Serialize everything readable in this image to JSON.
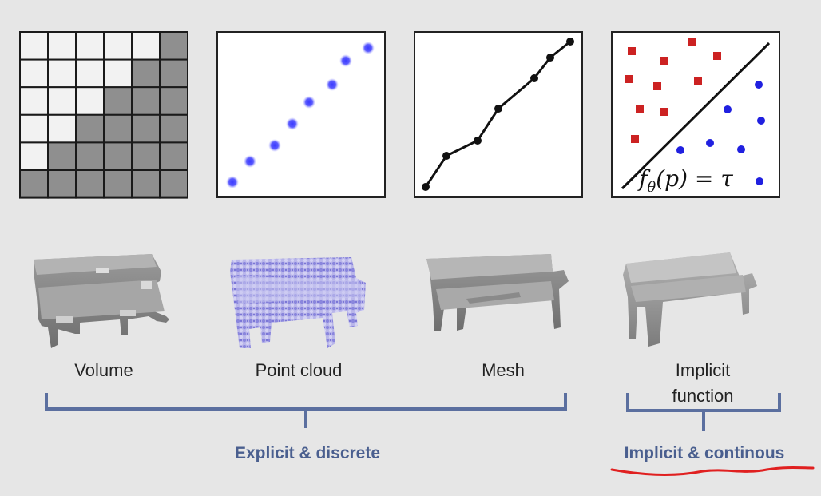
{
  "representations": [
    {
      "name": "Volume"
    },
    {
      "name": "Point cloud"
    },
    {
      "name": "Mesh"
    },
    {
      "name": "Implicit function"
    }
  ],
  "groups": [
    {
      "label": "Explicit & discrete"
    },
    {
      "label": "Implicit & continous"
    }
  ],
  "formula": "fθ(p) = τ",
  "colors": {
    "background": "#e6e6e6",
    "grid_filled": "#8f8f8f",
    "grid_empty": "#f2f2f2",
    "point_blue": "#3b3bff",
    "point_red": "#cc2222",
    "brace": "#5b6f9f",
    "group_text": "#4a5f8f",
    "underline": "#e02020"
  }
}
